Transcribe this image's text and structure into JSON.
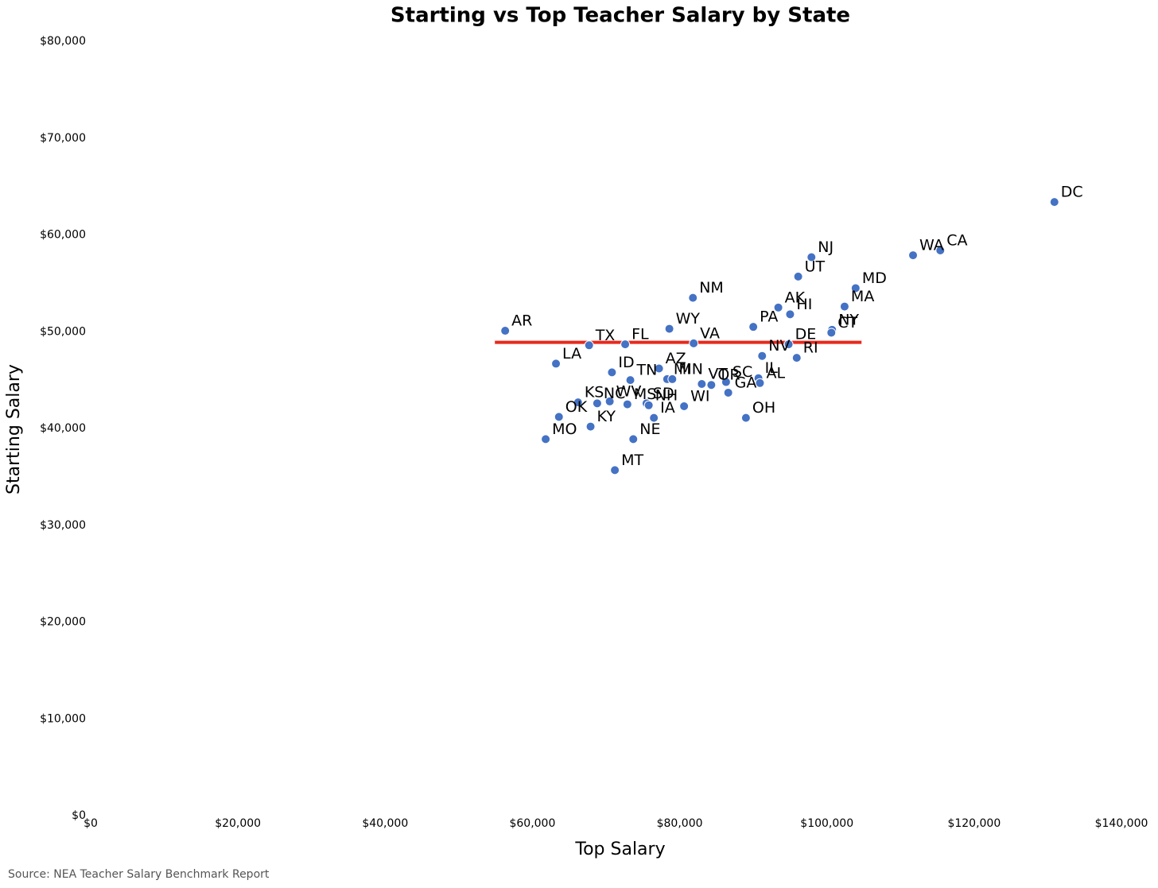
{
  "chart_data": {
    "type": "scatter",
    "title": "Starting vs Top Teacher Salary by State",
    "x_label": "Top Salary",
    "y_label": "Starting Salary",
    "source": "Source: NEA Teacher Salary Benchmark Report",
    "color": "#4472c4",
    "labels": [
      "DC",
      "CA",
      "WA",
      "NJ",
      "UT",
      "MD",
      "NM",
      "MA",
      "AK",
      "HI",
      "PA",
      "AR",
      "WY",
      "NY",
      "CT",
      "TX",
      "FL",
      "VA",
      "DE",
      "NV",
      "RI",
      "LA",
      "ID",
      "AZ",
      "TN",
      "MI",
      "MN",
      "VT",
      "OR",
      "SC",
      "IL",
      "AL",
      "GA",
      "KS",
      "NC",
      "WV",
      "MS",
      "SD",
      "NH",
      "WI",
      "OK",
      "IA",
      "OH",
      "KY",
      "MO",
      "NE",
      "MT"
    ],
    "x": [
      130900,
      115400,
      111700,
      97900,
      96100,
      103900,
      81800,
      102400,
      93400,
      95000,
      90000,
      56300,
      78600,
      100700,
      100600,
      67700,
      72600,
      81900,
      94800,
      91200,
      95900,
      63200,
      70800,
      77200,
      73300,
      78300,
      79000,
      83000,
      84300,
      86300,
      90700,
      90900,
      86600,
      66200,
      68800,
      70500,
      72900,
      75500,
      75800,
      80600,
      63600,
      76500,
      89000,
      67900,
      61800,
      73700,
      71200
    ],
    "y": [
      63400,
      58400,
      57900,
      57700,
      55700,
      54500,
      53500,
      52600,
      52500,
      51800,
      50500,
      50100,
      50300,
      50200,
      49900,
      48600,
      48700,
      48800,
      48700,
      47500,
      47300,
      46700,
      45800,
      46200,
      45000,
      45100,
      45100,
      44600,
      44500,
      44800,
      45200,
      44700,
      43700,
      42700,
      42600,
      42800,
      42500,
      42600,
      42400,
      42300,
      41200,
      41100,
      41100,
      40200,
      38900,
      38900,
      35700
    ],
    "ref_line": {
      "y": 48900,
      "x_range": [
        54900,
        104700
      ],
      "color": "#e8291c"
    },
    "xlim": [
      0,
      140000
    ],
    "ylim": [
      0,
      80000
    ],
    "xticks": [
      {
        "value": 0,
        "label": "$0"
      },
      {
        "value": 20000,
        "label": "$20,000"
      },
      {
        "value": 40000,
        "label": "$40,000"
      },
      {
        "value": 60000,
        "label": "$60,000"
      },
      {
        "value": 80000,
        "label": "$80,000"
      },
      {
        "value": 100000,
        "label": "$100,000"
      },
      {
        "value": 120000,
        "label": "$120,000"
      },
      {
        "value": 140000,
        "label": "$140,000"
      }
    ],
    "yticks": [
      {
        "value": 0,
        "label": "$0"
      },
      {
        "value": 10000,
        "label": "$10,000"
      },
      {
        "value": 20000,
        "label": "$20,000"
      },
      {
        "value": 30000,
        "label": "$30,000"
      },
      {
        "value": 40000,
        "label": "$40,000"
      },
      {
        "value": 50000,
        "label": "$50,000"
      },
      {
        "value": 60000,
        "label": "$60,000"
      },
      {
        "value": 70000,
        "label": "$70,000"
      },
      {
        "value": 80000,
        "label": "$80,000"
      }
    ],
    "grid": false
  }
}
